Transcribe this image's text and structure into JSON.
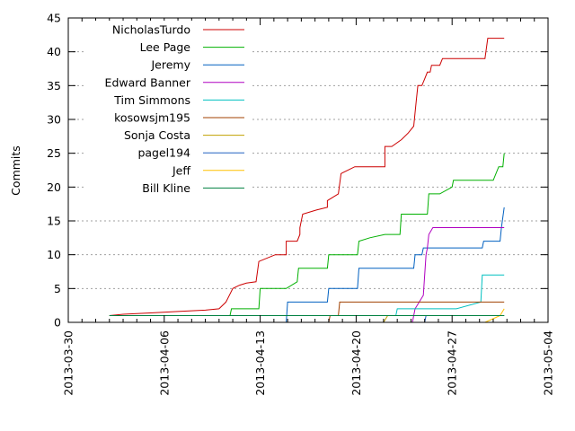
{
  "chart_data": {
    "type": "line",
    "title": "",
    "xlabel": "",
    "ylabel": "Commits",
    "x_type": "date",
    "xlim": [
      "2013-03-30",
      "2013-05-04"
    ],
    "ylim": [
      0,
      45
    ],
    "x_ticks": [
      "2013-03-30",
      "2013-04-06",
      "2013-04-13",
      "2013-04-20",
      "2013-04-27",
      "2013-05-04"
    ],
    "y_ticks": [
      0,
      5,
      10,
      15,
      20,
      25,
      30,
      35,
      40,
      45
    ],
    "grid": "horizontal dashed",
    "legend_position": "top-left",
    "series": [
      {
        "name": "NicholasTurdo",
        "color": "#cc0000",
        "points": [
          [
            "2013-04-02",
            1
          ],
          [
            "2013-04-03",
            1.2
          ],
          [
            "2013-04-05",
            1.4
          ],
          [
            "2013-04-07",
            1.6
          ],
          [
            "2013-04-09",
            1.8
          ],
          [
            "2013-04-10",
            2
          ],
          [
            "2013-04-10.5",
            3
          ],
          [
            "2013-04-11",
            5
          ],
          [
            "2013-04-11.5",
            5.5
          ],
          [
            "2013-04-12",
            5.8
          ],
          [
            "2013-04-12.7",
            6
          ],
          [
            "2013-04-12.9",
            9
          ],
          [
            "2013-04-14.1",
            10
          ],
          [
            "2013-04-14.9",
            10
          ],
          [
            "2013-04-14.9",
            12
          ],
          [
            "2013-04-15.7",
            12
          ],
          [
            "2013-04-15.9",
            13
          ],
          [
            "2013-04-15.9",
            14
          ],
          [
            "2013-04-16.1",
            16
          ],
          [
            "2013-04-17.1",
            16.6
          ],
          [
            "2013-04-17.9",
            17
          ],
          [
            "2013-04-17.9",
            18
          ],
          [
            "2013-04-18.7",
            19
          ],
          [
            "2013-04-18.9",
            22
          ],
          [
            "2013-04-19.9",
            23
          ],
          [
            "2013-04-22.1",
            23
          ],
          [
            "2013-04-22.1",
            26
          ],
          [
            "2013-04-22.6",
            26
          ],
          [
            "2013-04-23.3",
            27
          ],
          [
            "2013-04-23.8",
            28
          ],
          [
            "2013-04-24.2",
            29
          ],
          [
            "2013-04-24.4",
            33
          ],
          [
            "2013-04-24.5",
            35
          ],
          [
            "2013-04-24.8",
            35
          ],
          [
            "2013-04-25.0",
            36
          ],
          [
            "2013-04-25.2",
            37
          ],
          [
            "2013-04-25.4",
            37
          ],
          [
            "2013-04-25.5",
            38
          ],
          [
            "2013-04-26.1",
            38
          ],
          [
            "2013-04-26.3",
            39
          ],
          [
            "2013-04-29.4",
            39
          ],
          [
            "2013-04-29.6",
            42
          ],
          [
            "2013-04-30.8",
            42
          ]
        ]
      },
      {
        "name": "Lee Page",
        "color": "#00b000",
        "points": [
          [
            "2013-04-02",
            1
          ],
          [
            "2013-04-10.8",
            1
          ],
          [
            "2013-04-10.9",
            2
          ],
          [
            "2013-04-12.9",
            2
          ],
          [
            "2013-04-13.0",
            5
          ],
          [
            "2013-04-14.9",
            5
          ],
          [
            "2013-04-15.7",
            6
          ],
          [
            "2013-04-15.8",
            8
          ],
          [
            "2013-04-17.9",
            8
          ],
          [
            "2013-04-18.0",
            10
          ],
          [
            "2013-04-20.1",
            10
          ],
          [
            "2013-04-20.2",
            12
          ],
          [
            "2013-04-21.0",
            12.5
          ],
          [
            "2013-04-22.1",
            13
          ],
          [
            "2013-04-23.2",
            13
          ],
          [
            "2013-04-23.3",
            16
          ],
          [
            "2013-04-25.2",
            16
          ],
          [
            "2013-04-25.3",
            19
          ],
          [
            "2013-04-26.1",
            19
          ],
          [
            "2013-04-27.0",
            20
          ],
          [
            "2013-04-27.1",
            21
          ],
          [
            "2013-04-30.0",
            21
          ],
          [
            "2013-04-30.4",
            23
          ],
          [
            "2013-04-30.7",
            23
          ],
          [
            "2013-04-30.8",
            25
          ]
        ]
      },
      {
        "name": "Jeremy",
        "color": "#0060c0",
        "points": [
          [
            "2013-04-14.9",
            0
          ],
          [
            "2013-04-15.0",
            3
          ],
          [
            "2013-04-17.9",
            3
          ],
          [
            "2013-04-18.0",
            5
          ],
          [
            "2013-04-19.5",
            5
          ],
          [
            "2013-04-20.1",
            5
          ],
          [
            "2013-04-20.2",
            8
          ],
          [
            "2013-04-24.2",
            8
          ],
          [
            "2013-04-24.3",
            10
          ],
          [
            "2013-04-24.8",
            10
          ],
          [
            "2013-04-24.9",
            11
          ],
          [
            "2013-04-29.2",
            11
          ],
          [
            "2013-04-29.3",
            12
          ],
          [
            "2013-04-30.5",
            12
          ],
          [
            "2013-04-30.6",
            14
          ],
          [
            "2013-04-30.8",
            17
          ]
        ]
      },
      {
        "name": "Edward Banner",
        "color": "#b000c0",
        "points": [
          [
            "2013-04-24.1",
            0
          ],
          [
            "2013-04-24.3",
            2
          ],
          [
            "2013-04-24.6",
            3
          ],
          [
            "2013-04-24.9",
            4
          ],
          [
            "2013-04-25.0",
            7
          ],
          [
            "2013-04-25.1",
            10
          ],
          [
            "2013-04-25.2",
            11
          ],
          [
            "2013-04-25.3",
            13
          ],
          [
            "2013-04-25.6",
            14
          ],
          [
            "2013-04-30.8",
            14
          ]
        ]
      },
      {
        "name": "Tim Simmons",
        "color": "#00c0c0",
        "points": [
          [
            "2013-04-22.9",
            1
          ],
          [
            "2013-04-23.0",
            2
          ],
          [
            "2013-04-27.3",
            2
          ],
          [
            "2013-04-29.1",
            3
          ],
          [
            "2013-04-29.2",
            7
          ],
          [
            "2013-04-30.8",
            7
          ]
        ]
      },
      {
        "name": "kosowsjm195",
        "color": "#a04000",
        "points": [
          [
            "2013-04-18.0",
            0
          ],
          [
            "2013-04-18.1",
            1
          ],
          [
            "2013-04-18.7",
            1
          ],
          [
            "2013-04-18.8",
            3
          ],
          [
            "2013-04-30.8",
            3
          ]
        ]
      },
      {
        "name": "Sonja Costa",
        "color": "#c0a000",
        "points": [
          [
            "2013-04-22.0",
            0
          ],
          [
            "2013-04-22.3",
            1
          ],
          [
            "2013-04-30.8",
            1
          ]
        ]
      },
      {
        "name": "pagel194",
        "color": "#2060c0",
        "points": [
          [
            "2013-04-25.0",
            0
          ],
          [
            "2013-04-25.1",
            1
          ],
          [
            "2013-04-30.8",
            1
          ]
        ]
      },
      {
        "name": "Jeff",
        "color": "#ffc000",
        "points": [
          [
            "2013-04-29.4",
            0
          ],
          [
            "2013-04-30.5",
            1
          ],
          [
            "2013-04-30.8",
            2
          ]
        ]
      },
      {
        "name": "Bill Kline",
        "color": "#008040",
        "points": [
          [
            "2013-04-02",
            1
          ],
          [
            "2013-04-10",
            1
          ],
          [
            "2013-04-30.8",
            1
          ]
        ]
      }
    ]
  }
}
